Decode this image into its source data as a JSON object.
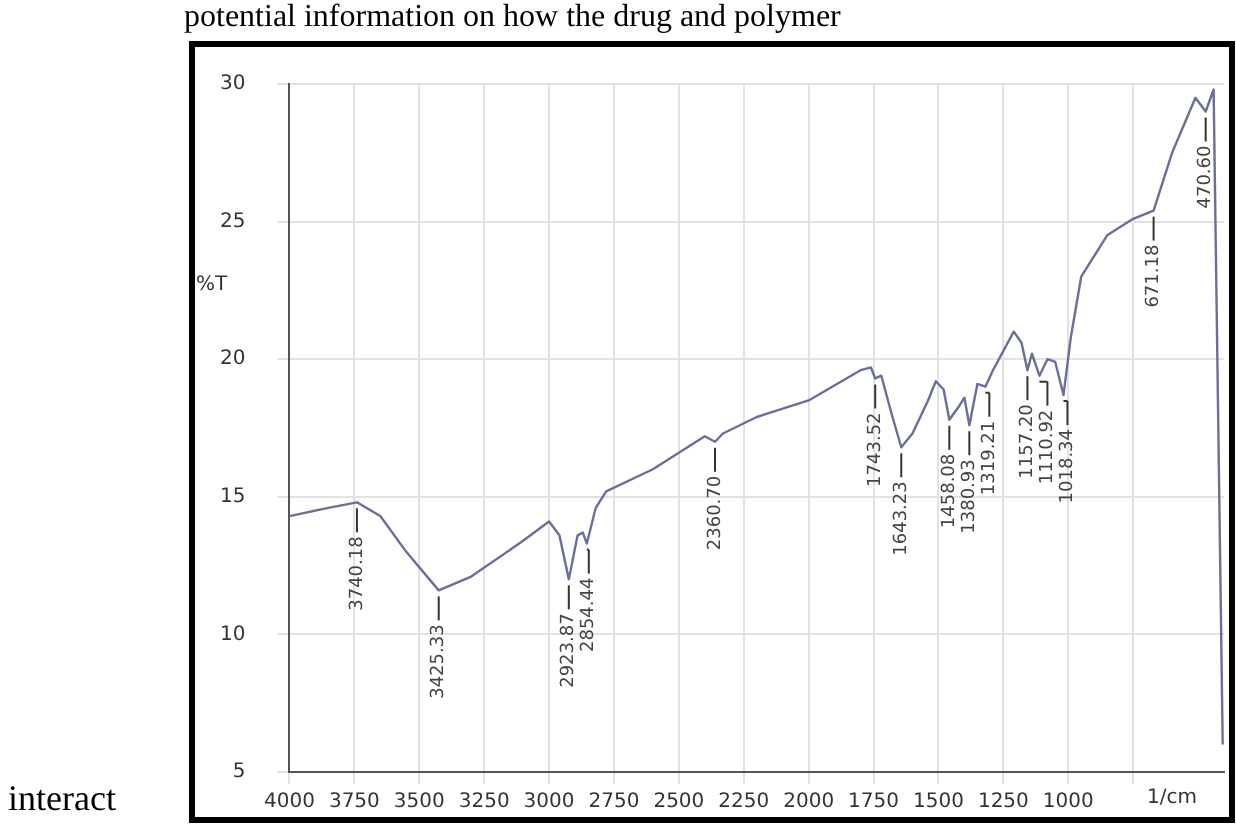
{
  "chart_data": {
    "type": "line",
    "xlabel": "1/cm",
    "ylabel": "%T",
    "x": [
      4000,
      3850,
      3740,
      3650,
      3550,
      3425,
      3300,
      3100,
      3000,
      2960,
      2923.87,
      2890,
      2870,
      2854.44,
      2820,
      2780,
      2600,
      2400,
      2360.7,
      2330,
      2200,
      2000,
      1800,
      1760,
      1743.52,
      1720,
      1680,
      1643.23,
      1600,
      1540,
      1510,
      1480,
      1458.08,
      1420,
      1400,
      1380.93,
      1350,
      1319.21,
      1290,
      1210,
      1180,
      1157.2,
      1140,
      1110.92,
      1080,
      1050,
      1018.34,
      990,
      950,
      850,
      750,
      671.18,
      600,
      510,
      470.6,
      440,
      405
    ],
    "series": [
      {
        "color": "#6a6f9a",
        "values": [
          14.3,
          14.6,
          14.8,
          14.3,
          13.0,
          11.6,
          12.1,
          13.4,
          14.1,
          13.6,
          12.0,
          13.6,
          13.7,
          13.3,
          14.6,
          15.2,
          16.0,
          17.2,
          17.0,
          17.3,
          17.9,
          18.5,
          19.6,
          19.7,
          19.3,
          19.4,
          18.0,
          16.8,
          17.3,
          18.5,
          19.2,
          18.9,
          17.8,
          18.3,
          18.6,
          17.6,
          19.1,
          19.0,
          19.6,
          21.0,
          20.6,
          19.6,
          20.2,
          19.4,
          20.0,
          19.9,
          18.7,
          20.8,
          23.0,
          24.5,
          25.1,
          25.4,
          27.5,
          29.5,
          29.0,
          29.8,
          6.0
        ]
      }
    ],
    "xlim": [
      4000,
      400
    ],
    "ylim": [
      5,
      30
    ],
    "xticks": [
      4000,
      3750,
      3500,
      3250,
      3000,
      2750,
      2500,
      2250,
      2000,
      1750,
      1500,
      1250,
      1000,
      {
        "value": 750,
        "label": null
      }
    ],
    "yticks": [
      5,
      10,
      15,
      20,
      25,
      30
    ],
    "grid": true,
    "legend": false,
    "marker": "none",
    "line_style": "solid",
    "annotations": [
      "potential information on how the drug and polymer",
      "interact",
      {
        "text": "3740.18",
        "x": 3740,
        "y": 14.8
      },
      {
        "text": "3425.33",
        "x": 3425,
        "y": 11.6
      },
      {
        "text": "2923.87",
        "x": 2923.87,
        "y": 12.0
      },
      {
        "text": "2854.44",
        "x": 2854.44,
        "y": 13.3
      },
      {
        "text": "2360.70",
        "x": 2360.7,
        "y": 17.0
      },
      {
        "text": "1743.52",
        "x": 1743.52,
        "y": 19.3
      },
      {
        "text": "1643.23",
        "x": 1643.23,
        "y": 16.8
      },
      {
        "text": "1458.08",
        "x": 1458.08,
        "y": 17.8
      },
      {
        "text": "1380.93",
        "x": 1380.93,
        "y": 17.6
      },
      {
        "text": "1319.21",
        "x": 1319.21,
        "y": 19.0
      },
      {
        "text": "1157.20",
        "x": 1157.2,
        "y": 19.6
      },
      {
        "text": "1110.92",
        "x": 1110.92,
        "y": 19.4
      },
      {
        "text": "1018.34",
        "x": 1018.34,
        "y": 18.7
      },
      {
        "text": "671.18",
        "x": 671.18,
        "y": 25.4
      },
      {
        "text": "470.60",
        "x": 470.6,
        "y": 29.0
      }
    ]
  }
}
